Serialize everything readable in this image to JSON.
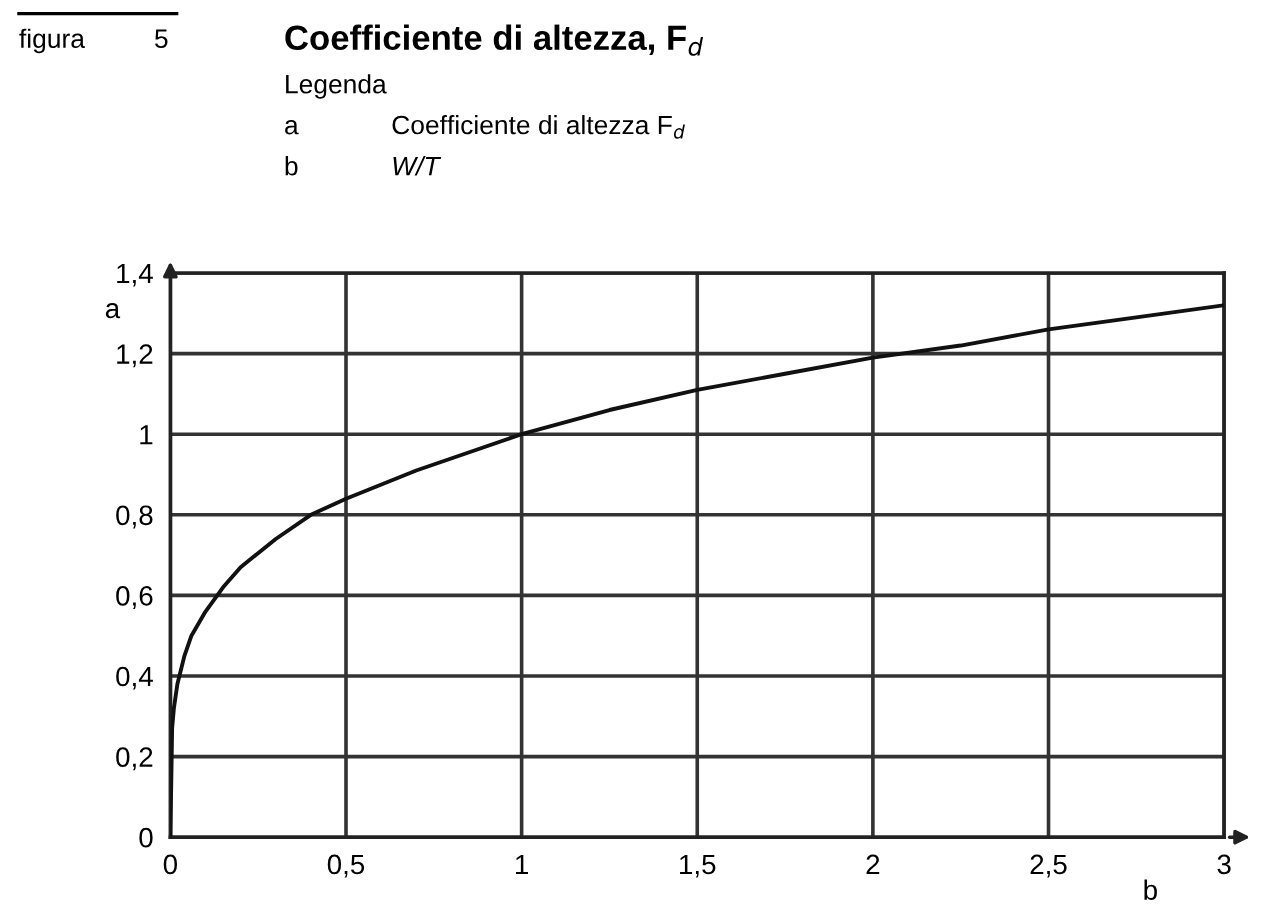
{
  "chart_data": {
    "type": "line",
    "title": "Coefficiente di altezza, F$_{d}$",
    "annotations": [
      "figura",
      "5",
      "Legenda",
      "a",
      "Coefficiente di altezza F$_{d}$",
      "b",
      "W/T"
    ],
    "xlabel": "b",
    "ylabel": "a",
    "x": [
      0,
      0.005,
      0.01,
      0.02,
      0.04,
      0.06,
      0.1,
      0.15,
      0.2,
      0.3,
      0.4,
      0.5,
      0.7,
      1,
      1.25,
      1.5,
      1.75,
      2,
      2.25,
      2.5,
      2.75,
      3
    ],
    "series": [
      {
        "color": "#111111",
        "values": [
          0,
          0.27,
          0.32,
          0.38,
          0.45,
          0.5,
          0.56,
          0.62,
          0.67,
          0.74,
          0.8,
          0.84,
          0.91,
          1.0,
          1.06,
          1.11,
          1.15,
          1.19,
          1.22,
          1.26,
          1.29,
          1.32
        ]
      }
    ],
    "xlim": [
      0,
      3
    ],
    "ylim": [
      0,
      1.4
    ],
    "xticks": [
      0,
      {
        "value": 0.5,
        "label": "0,5"
      },
      1,
      {
        "value": 1.5,
        "label": "1,5"
      },
      2,
      {
        "value": 2.5,
        "label": "2,5"
      },
      3
    ],
    "yticks": [
      0,
      {
        "value": 0.2,
        "label": "0,2"
      },
      {
        "value": 0.4,
        "label": "0,4"
      },
      {
        "value": 0.6,
        "label": "0,6"
      },
      {
        "value": 0.8,
        "label": "0,8"
      },
      1,
      {
        "value": 1.2,
        "label": "1,2"
      },
      {
        "value": 1.4,
        "label": "1,4"
      }
    ],
    "grid": true,
    "marker": "none",
    "line_style": "solid"
  }
}
